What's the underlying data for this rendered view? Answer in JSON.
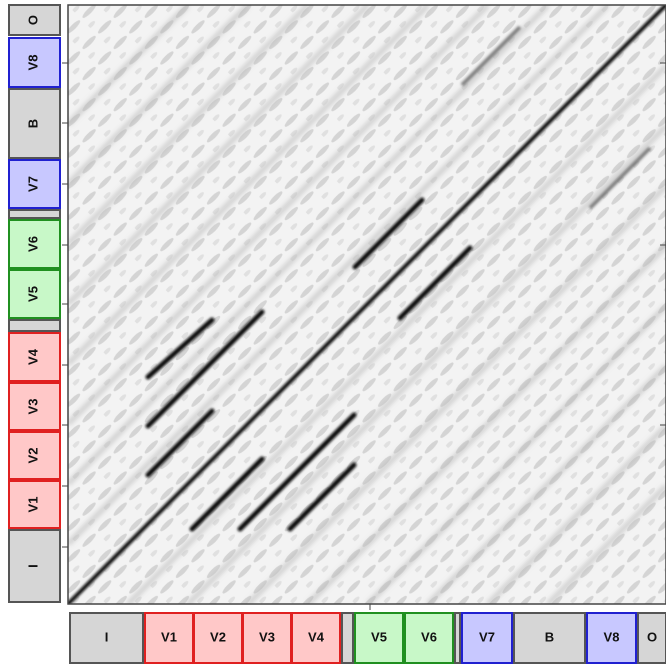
{
  "segments": [
    "I",
    "V1",
    "V2",
    "V3",
    "V4",
    "V5",
    "V6",
    "V7",
    "B",
    "V8",
    "O"
  ]
}
